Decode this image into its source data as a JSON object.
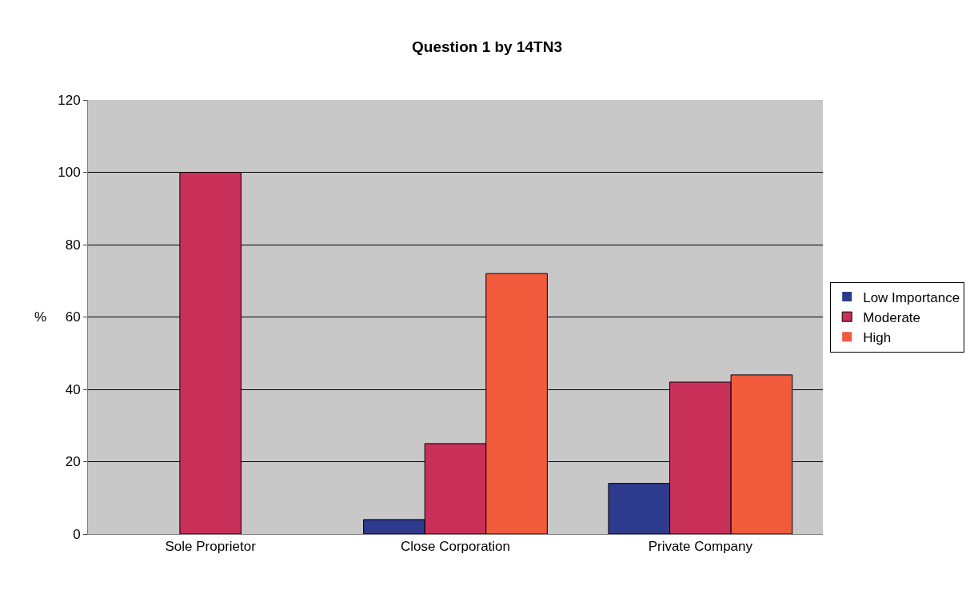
{
  "chart_data": {
    "type": "bar",
    "title": "Question 1 by 14TN3",
    "ylabel": "%",
    "categories": [
      "Sole Proprietor",
      "Close Corporation",
      "Private Company"
    ],
    "series": [
      {
        "name": "Low Importance",
        "color": "#2e3a8c",
        "values": [
          0,
          4,
          14
        ]
      },
      {
        "name": "Moderate",
        "color": "#c8305a",
        "values": [
          100,
          25,
          42
        ]
      },
      {
        "name": "High",
        "color": "#f25a3c",
        "values": [
          0,
          72,
          44
        ]
      }
    ],
    "ylim": [
      0,
      120
    ],
    "yticks": [
      0,
      20,
      40,
      60,
      80,
      100,
      120
    ],
    "grid": "y",
    "legend": "right"
  }
}
